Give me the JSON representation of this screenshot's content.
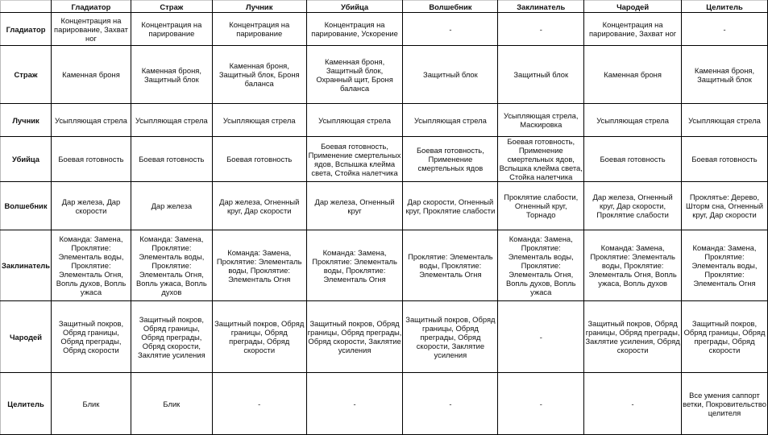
{
  "columns": [
    "",
    "Гладиатор",
    "Страж",
    "Лучник",
    "Убийца",
    "Волшебник",
    "Заклинатель",
    "Чародей",
    "Целитель"
  ],
  "rows": [
    {
      "header": "Гладиатор",
      "cells": [
        "Концентрация на парирование, Захват ног",
        "Концентрация на парирование",
        "Концентрация на парирование",
        "Концентрация на парирование, Ускорение",
        "-",
        "-",
        "Концентрация на парирование, Захват ног",
        "-"
      ]
    },
    {
      "header": "Страж",
      "cells": [
        "Каменная броня",
        "Каменная броня, Защитный блок",
        "Каменная броня, Защитный блок, Броня баланса",
        "Каменная броня, Защитный блок, Охранный щит, Броня баланса",
        "Защитный блок",
        "Защитный блок",
        "Каменная броня",
        "Каменная броня, Защитный блок"
      ]
    },
    {
      "header": "Лучник",
      "cells": [
        "Усыпляющая стрела",
        "Усыпляющая стрела",
        "Усыпляющая стрела",
        "Усыпляющая стрела",
        "Усыпляющая стрела",
        "Усыпляющая стрела, Маскировка",
        "Усыпляющая стрела",
        "Усыпляющая стрела"
      ]
    },
    {
      "header": "Убийца",
      "cells": [
        "Боевая готовность",
        "Боевая готовность",
        "Боевая готовность",
        "Боевая готовность, Применение смертельных ядов, Вспышка клейма света, Стойка налетчика",
        "Боевая готовность, Применение смертельных ядов",
        "Боевая готовность, Применение смертельных ядов, Вспышка клейма света, Стойка налетчика",
        "Боевая готовность",
        "Боевая готовность"
      ]
    },
    {
      "header": "Волшебник",
      "cells": [
        "Дар железа, Дар скорости",
        "Дар железа",
        "Дар железа, Огненный круг, Дар скорости",
        "Дар железа, Огненный круг",
        "Дар скорости, Огненный круг, Проклятие слабости",
        "Проклятие слабости, Огненный круг, Торнадо",
        "Дар железа, Огненный круг, Дар скорости, Проклятие слабости",
        "Проклятье: Дерево, Шторм сна, Огненный круг, Дар скорости"
      ]
    },
    {
      "header": "Заклинатель",
      "cells": [
        "Команда: Замена, Проклятие: Элементаль воды, Проклятие: Элементаль Огня, Вопль духов, Вопль ужаса",
        "Команда: Замена, Проклятие: Элементаль воды, Проклятие: Элементаль Огня, Вопль ужаса, Вопль духов",
        "Команда: Замена, Проклятие: Элементаль воды, Проклятие: Элементаль Огня",
        "Команда: Замена, Проклятие: Элементаль воды, Проклятие: Элементаль Огня",
        "Проклятие: Элементаль воды, Проклятие: Элементаль Огня",
        "Команда: Замена, Проклятие: Элементаль воды, Проклятие: Элементаль Огня, Вопль духов, Вопль ужаса",
        "Команда: Замена, Проклятие: Элементаль воды, Проклятие: Элементаль Огня, Вопль ужаса, Вопль духов",
        "Команда: Замена, Проклятие: Элементаль воды, Проклятие: Элементаль Огня"
      ]
    },
    {
      "header": "Чародей",
      "cells": [
        "Защитный покров, Обряд границы, Обряд преграды, Обряд скорости",
        "Защитный покров, Обряд границы, Обряд преграды, Обряд скорости, Заклятие усиления",
        "Защитный покров, Обряд границы, Обряд преграды, Обряд скорости",
        "Защитный покров, Обряд границы, Обряд преграды, Обряд скорости, Заклятие усиления",
        "Защитный покров, Обряд границы, Обряд преграды, Обряд скорости, Заклятие усиления",
        "-",
        "Защитный покров, Обряд границы, Обряд преграды, Заклятие усиления, Обряд скорости",
        "Защитный покров, Обряд границы, Обряд преграды, Обряд скорости"
      ]
    },
    {
      "header": "Целитель",
      "cells": [
        "Блик",
        "Блик",
        "-",
        "-",
        "-",
        "-",
        "-",
        "Все умения саппорт ветки, Покровительство целителя"
      ]
    }
  ]
}
